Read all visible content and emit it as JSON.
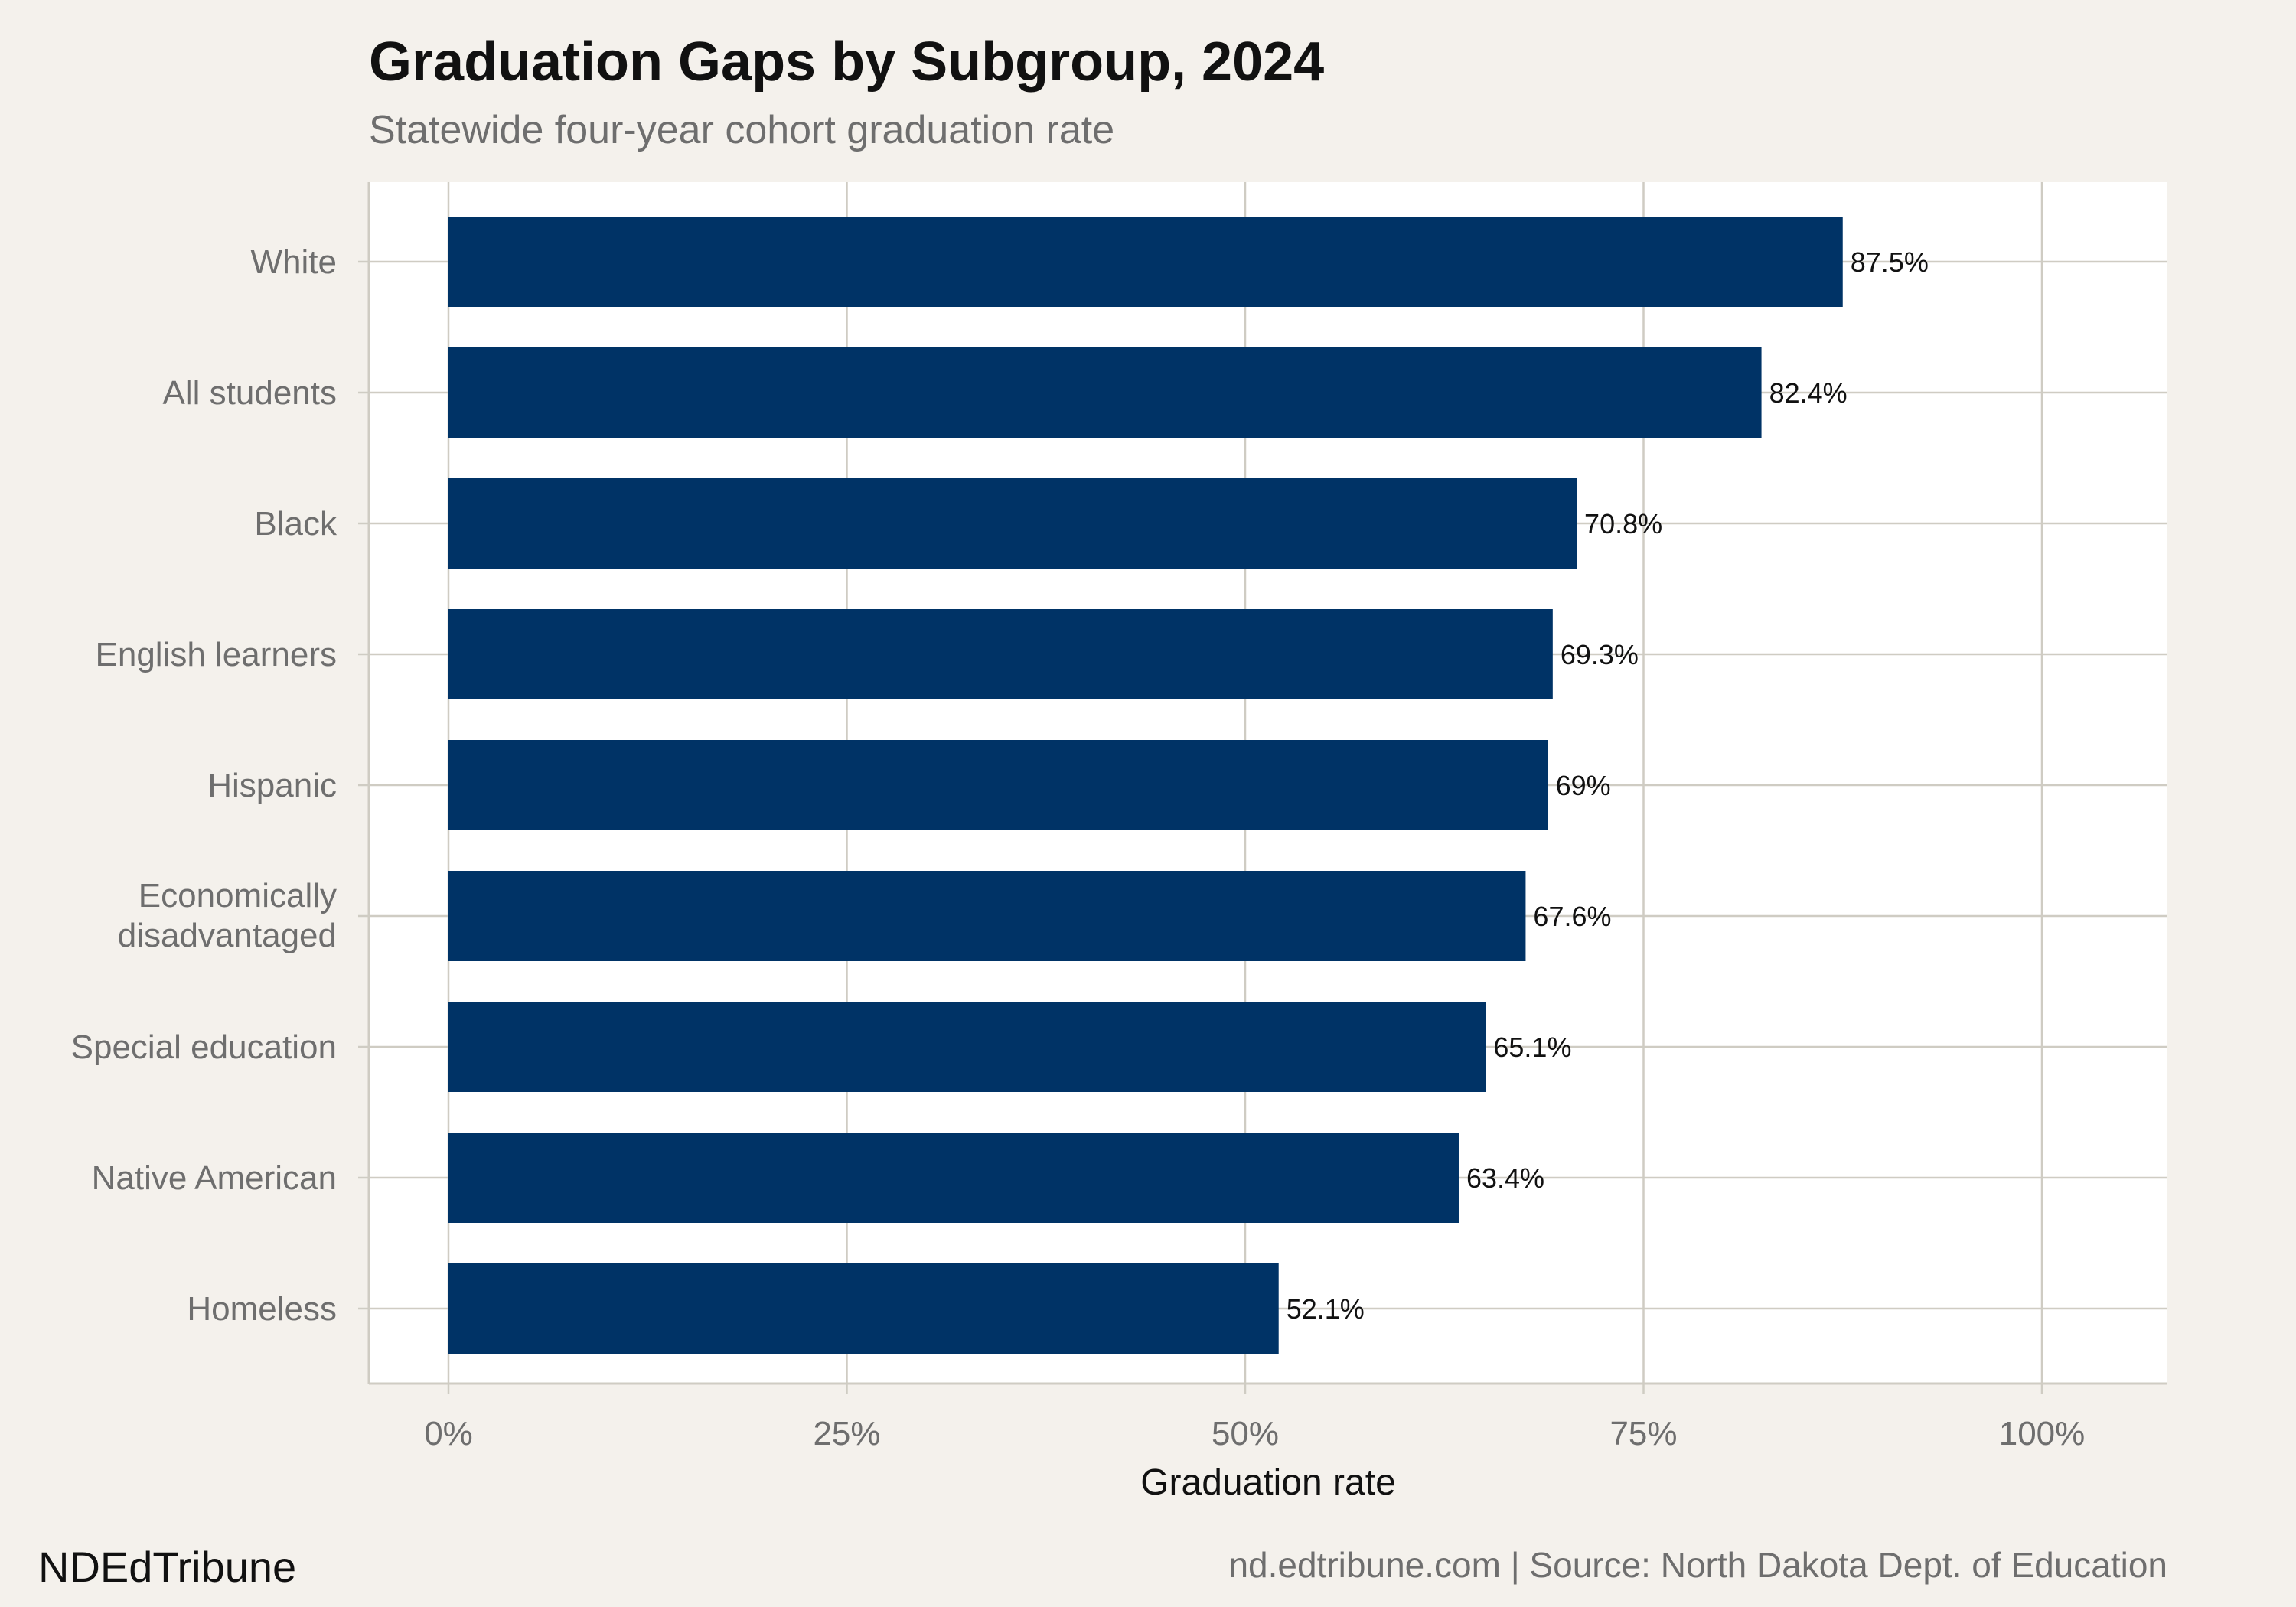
{
  "header": {
    "title": "Graduation Gaps by Subgroup, 2024",
    "subtitle": "Statewide four-year cohort graduation rate"
  },
  "footer": {
    "brand": "NDEdTribune",
    "source": "nd.edtribune.com | Source: North Dakota Dept. of Education"
  },
  "colors": {
    "bar": "#003366",
    "panel": "#ffffff",
    "background": "#f4f1ec",
    "grid": "#cfccc3"
  },
  "chart_data": {
    "type": "bar",
    "orientation": "horizontal",
    "title": "Graduation Gaps by Subgroup, 2024",
    "subtitle": "Statewide four-year cohort graduation rate",
    "xlabel": "Graduation rate",
    "ylabel": "",
    "xlim": [
      0,
      100
    ],
    "x_ticks": [
      0,
      25,
      50,
      75,
      100
    ],
    "x_tick_labels": [
      "0%",
      "25%",
      "50%",
      "75%",
      "100%"
    ],
    "grid": true,
    "categories": [
      "White",
      "All students",
      "Black",
      "English learners",
      "Hispanic",
      "Economically disadvantaged",
      "Special education",
      "Native American",
      "Homeless"
    ],
    "values": [
      87.5,
      82.4,
      70.8,
      69.3,
      69,
      67.6,
      65.1,
      63.4,
      52.1
    ],
    "value_labels": [
      "87.5%",
      "82.4%",
      "70.8%",
      "69.3%",
      "69%",
      "67.6%",
      "65.1%",
      "63.4%",
      "52.1%"
    ]
  }
}
